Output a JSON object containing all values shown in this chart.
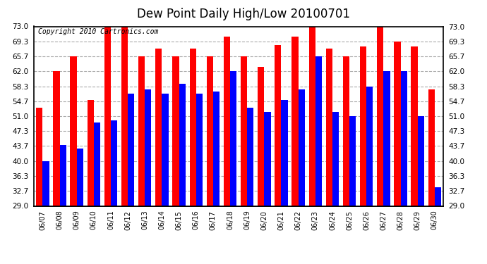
{
  "title": "Dew Point Daily High/Low 20100701",
  "copyright": "Copyright 2010 Cartronics.com",
  "dates": [
    "06/07",
    "06/08",
    "06/09",
    "06/10",
    "06/11",
    "06/12",
    "06/13",
    "06/14",
    "06/15",
    "06/16",
    "06/17",
    "06/18",
    "06/19",
    "06/20",
    "06/21",
    "06/22",
    "06/23",
    "06/24",
    "06/25",
    "06/26",
    "06/27",
    "06/28",
    "06/29",
    "06/30"
  ],
  "highs": [
    53.0,
    62.0,
    65.7,
    55.0,
    74.0,
    73.0,
    65.7,
    67.5,
    65.7,
    67.5,
    65.7,
    70.5,
    65.7,
    63.0,
    68.5,
    70.5,
    74.0,
    67.5,
    65.7,
    68.0,
    74.0,
    69.3,
    68.0,
    57.5
  ],
  "lows": [
    40.0,
    44.0,
    43.0,
    49.5,
    50.0,
    56.5,
    57.5,
    56.5,
    59.0,
    56.5,
    57.0,
    62.0,
    53.0,
    52.0,
    55.0,
    57.5,
    65.7,
    52.0,
    51.0,
    58.3,
    62.0,
    62.0,
    51.0,
    33.5
  ],
  "high_color": "#ff0000",
  "low_color": "#0000ff",
  "bg_color": "#ffffff",
  "plot_bg_color": "#ffffff",
  "grid_color": "#aaaaaa",
  "ymin": 29.0,
  "ymax": 73.0,
  "yticks": [
    29.0,
    32.7,
    36.3,
    40.0,
    43.7,
    47.3,
    51.0,
    54.7,
    58.3,
    62.0,
    65.7,
    69.3,
    73.0
  ],
  "title_fontsize": 12,
  "copyright_fontsize": 7,
  "bar_width": 0.38
}
